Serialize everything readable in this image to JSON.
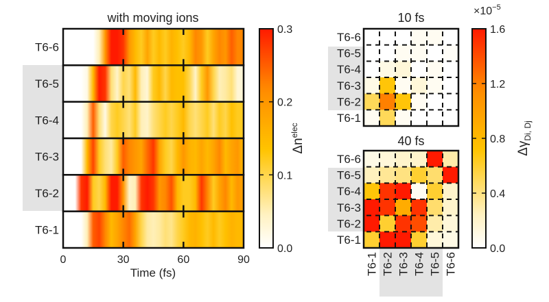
{
  "chart_data": [
    {
      "type": "heatmap",
      "title": "with moving ions",
      "xlabel": "Time (fs)",
      "xlim": [
        0,
        90
      ],
      "x_ticks": [
        "0",
        "30",
        "60",
        "90"
      ],
      "rows": [
        "T6-6",
        "T6-5",
        "T6-4",
        "T6-3",
        "T6-2",
        "T6-1"
      ],
      "highlighted_rows": [
        "T6-5",
        "T6-4",
        "T6-3",
        "T6-2"
      ],
      "time": [
        0,
        3,
        6,
        9,
        12,
        15,
        18,
        21,
        24,
        27,
        30,
        33,
        36,
        39,
        42,
        45,
        48,
        51,
        54,
        57,
        60,
        63,
        66,
        69,
        72,
        75,
        78,
        81,
        84,
        87,
        90
      ],
      "values": [
        [
          0,
          0,
          0,
          0,
          0,
          0,
          0.05,
          0.2,
          0.3,
          0.3,
          0.28,
          0.2,
          0.15,
          0.12,
          0.18,
          0.12,
          0.15,
          0.12,
          0.16,
          0.14,
          0.12,
          0.15,
          0.22,
          0.2,
          0.12,
          0.18,
          0.22,
          0.2,
          0.25,
          0.22,
          0.22
        ],
        [
          0,
          0,
          0,
          0,
          0.02,
          0.15,
          0.3,
          0.28,
          0.08,
          0.04,
          0.1,
          0.08,
          0.15,
          0.05,
          0.03,
          0.12,
          0.15,
          0.1,
          0.15,
          0.14,
          0.14,
          0.1,
          0.04,
          0.12,
          0.2,
          0.1,
          0.05,
          0.06,
          0.08,
          0.03,
          0.03
        ],
        [
          0,
          0,
          0,
          0,
          0.05,
          0.25,
          0.08,
          0.02,
          0.1,
          0.12,
          0.1,
          0.08,
          0.12,
          0.05,
          0.04,
          0.08,
          0.1,
          0.12,
          0.1,
          0.12,
          0.15,
          0.1,
          0.08,
          0.1,
          0.12,
          0.08,
          0.12,
          0.1,
          0.14,
          0.12,
          0.12
        ],
        [
          0,
          0,
          0,
          0,
          0.15,
          0.27,
          0.12,
          0.08,
          0.06,
          0.12,
          0.25,
          0.22,
          0.2,
          0.18,
          0.24,
          0.28,
          0.18,
          0.12,
          0.1,
          0.15,
          0.2,
          0.16,
          0.15,
          0.18,
          0.15,
          0.18,
          0.22,
          0.15,
          0.18,
          0.2,
          0.15
        ],
        [
          0,
          0,
          0,
          0.28,
          0.3,
          0.12,
          0.1,
          0.15,
          0.3,
          0.3,
          0.2,
          0.04,
          0.05,
          0.28,
          0.3,
          0.28,
          0.2,
          0.22,
          0.26,
          0.15,
          0.12,
          0.12,
          0.15,
          0.28,
          0.22,
          0.12,
          0.18,
          0.22,
          0.15,
          0.2,
          0.18
        ],
        [
          0,
          0,
          0,
          0,
          0.05,
          0.25,
          0.27,
          0.22,
          0.15,
          0.18,
          0.22,
          0.24,
          0.18,
          0.1,
          0.06,
          0.05,
          0.06,
          0.08,
          0.07,
          0.1,
          0.12,
          0.15,
          0.16,
          0.14,
          0.12,
          0.15,
          0.12,
          0.14,
          0.16,
          0.15,
          0.15
        ]
      ],
      "colorbar": {
        "label_base": "Δn",
        "label_sup": "elec",
        "range": [
          0,
          0.3
        ],
        "ticks": [
          "0.0",
          "0.1",
          "0.2",
          "0.3"
        ]
      }
    },
    {
      "type": "heatmap",
      "title": "10 fs",
      "rows": [
        "T6-6",
        "T6-5",
        "T6-4",
        "T6-3",
        "T6-2",
        "T6-1"
      ],
      "cols": [
        "T6-1",
        "T6-2",
        "T6-3",
        "T6-4",
        "T6-5",
        "T6-6"
      ],
      "values": [
        [
          0,
          0,
          0,
          0.05,
          0.05,
          0
        ],
        [
          0,
          0,
          0.05,
          0.05,
          0,
          0.03
        ],
        [
          0,
          0.1,
          0.15,
          0,
          0.05,
          0
        ],
        [
          0.1,
          0.7,
          0.05,
          0.15,
          0.05,
          0
        ],
        [
          0.5,
          1.2,
          0.7,
          0.05,
          0,
          0
        ],
        [
          0.05,
          0.5,
          0.05,
          0,
          0,
          0
        ]
      ]
    },
    {
      "type": "heatmap",
      "title": "40 fs",
      "rows": [
        "T6-6",
        "T6-5",
        "T6-4",
        "T6-3",
        "T6-2",
        "T6-1"
      ],
      "cols": [
        "T6-1",
        "T6-2",
        "T6-3",
        "T6-4",
        "T6-5",
        "T6-6"
      ],
      "values": [
        [
          0.1,
          0.15,
          0.2,
          0.2,
          1.6,
          0.3
        ],
        [
          0.25,
          0.35,
          0.4,
          0.6,
          0.45,
          1.6
        ],
        [
          0.7,
          1.5,
          1.6,
          0.05,
          0.6,
          0.2
        ],
        [
          1.6,
          1.5,
          0.9,
          1.5,
          0.45,
          0.2
        ],
        [
          1.6,
          0.6,
          1.5,
          1.4,
          0.3,
          0.15
        ],
        [
          0.6,
          1.6,
          1.6,
          0.6,
          0.15,
          0.1
        ]
      ],
      "colorbar": {
        "label_base": "Δγ",
        "label_sub": "Di, Dj",
        "multiplier": "×10",
        "multiplier_exp": "−5",
        "range": [
          0,
          1.6
        ],
        "ticks": [
          "0.0",
          "0.4",
          "0.8",
          "1.2",
          "1.6"
        ]
      }
    }
  ],
  "colormap": [
    "#ffffff",
    "#fff2c2",
    "#ffc300",
    "#ff8c00",
    "#ff1a00"
  ]
}
